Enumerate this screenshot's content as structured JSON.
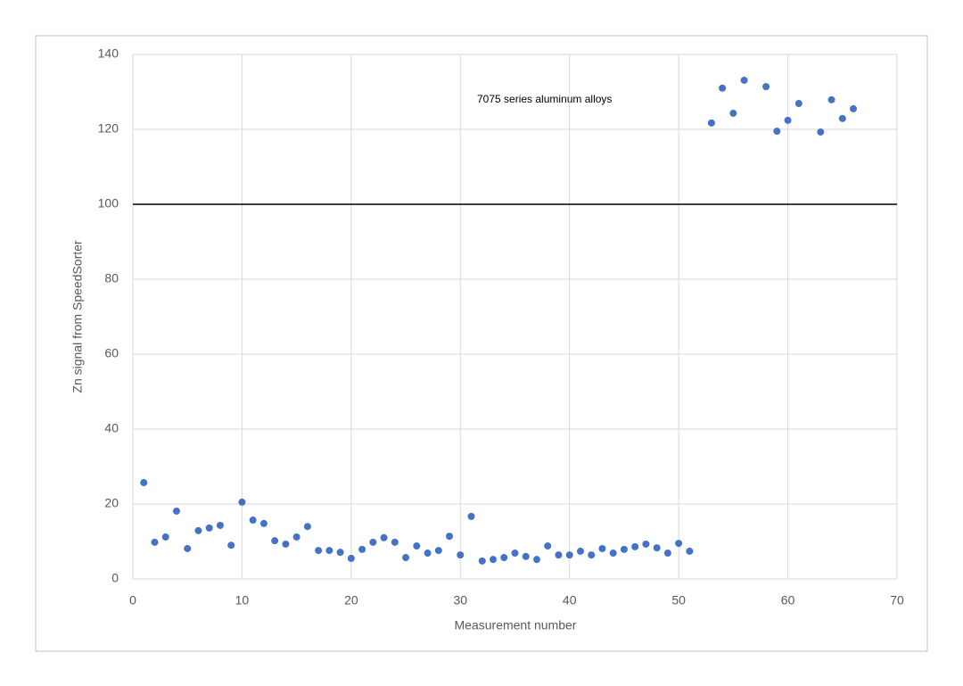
{
  "chart_data": {
    "type": "scatter",
    "x_label": "Measurement number",
    "y_label": "Zn signal from SpeedSorter",
    "annotation": "7075 series aluminum alloys",
    "reference_line": 100,
    "color": "#4472c4",
    "x": [
      1,
      2,
      3,
      4,
      5,
      6,
      7,
      8,
      9,
      10,
      11,
      12,
      13,
      14,
      15,
      16,
      17,
      18,
      19,
      20,
      21,
      22,
      23,
      24,
      25,
      26,
      27,
      28,
      29,
      30,
      31,
      32,
      33,
      34,
      35,
      36,
      37,
      38,
      39,
      40,
      41,
      42,
      43,
      44,
      45,
      46,
      47,
      48,
      49,
      50,
      51,
      53,
      54,
      55,
      56,
      58,
      59,
      60,
      61,
      63,
      64,
      65,
      66
    ],
    "values": [
      25.7,
      9.8,
      11.2,
      18.1,
      8.1,
      12.9,
      13.6,
      14.3,
      9.0,
      20.5,
      15.7,
      14.8,
      10.2,
      9.3,
      11.2,
      14.0,
      7.6,
      7.6,
      7.1,
      5.5,
      7.9,
      9.8,
      11.0,
      9.8,
      5.7,
      8.8,
      6.9,
      7.6,
      11.4,
      6.4,
      16.7,
      4.8,
      5.2,
      5.7,
      6.9,
      6.0,
      5.2,
      8.8,
      6.4,
      6.4,
      7.4,
      6.4,
      8.1,
      6.9,
      7.9,
      8.6,
      9.3,
      8.3,
      6.9,
      9.5,
      7.4,
      121.7,
      131.0,
      124.3,
      133.1,
      131.4,
      119.5,
      122.4,
      126.9,
      119.3,
      127.9,
      122.9,
      125.5
    ],
    "xlim": [
      0,
      70
    ],
    "xticks": [
      0,
      10,
      20,
      30,
      40,
      50,
      60,
      70
    ],
    "ylim": [
      0,
      140
    ],
    "yticks": [
      0,
      20,
      40,
      60,
      80,
      100,
      120,
      140
    ],
    "grid": true
  }
}
